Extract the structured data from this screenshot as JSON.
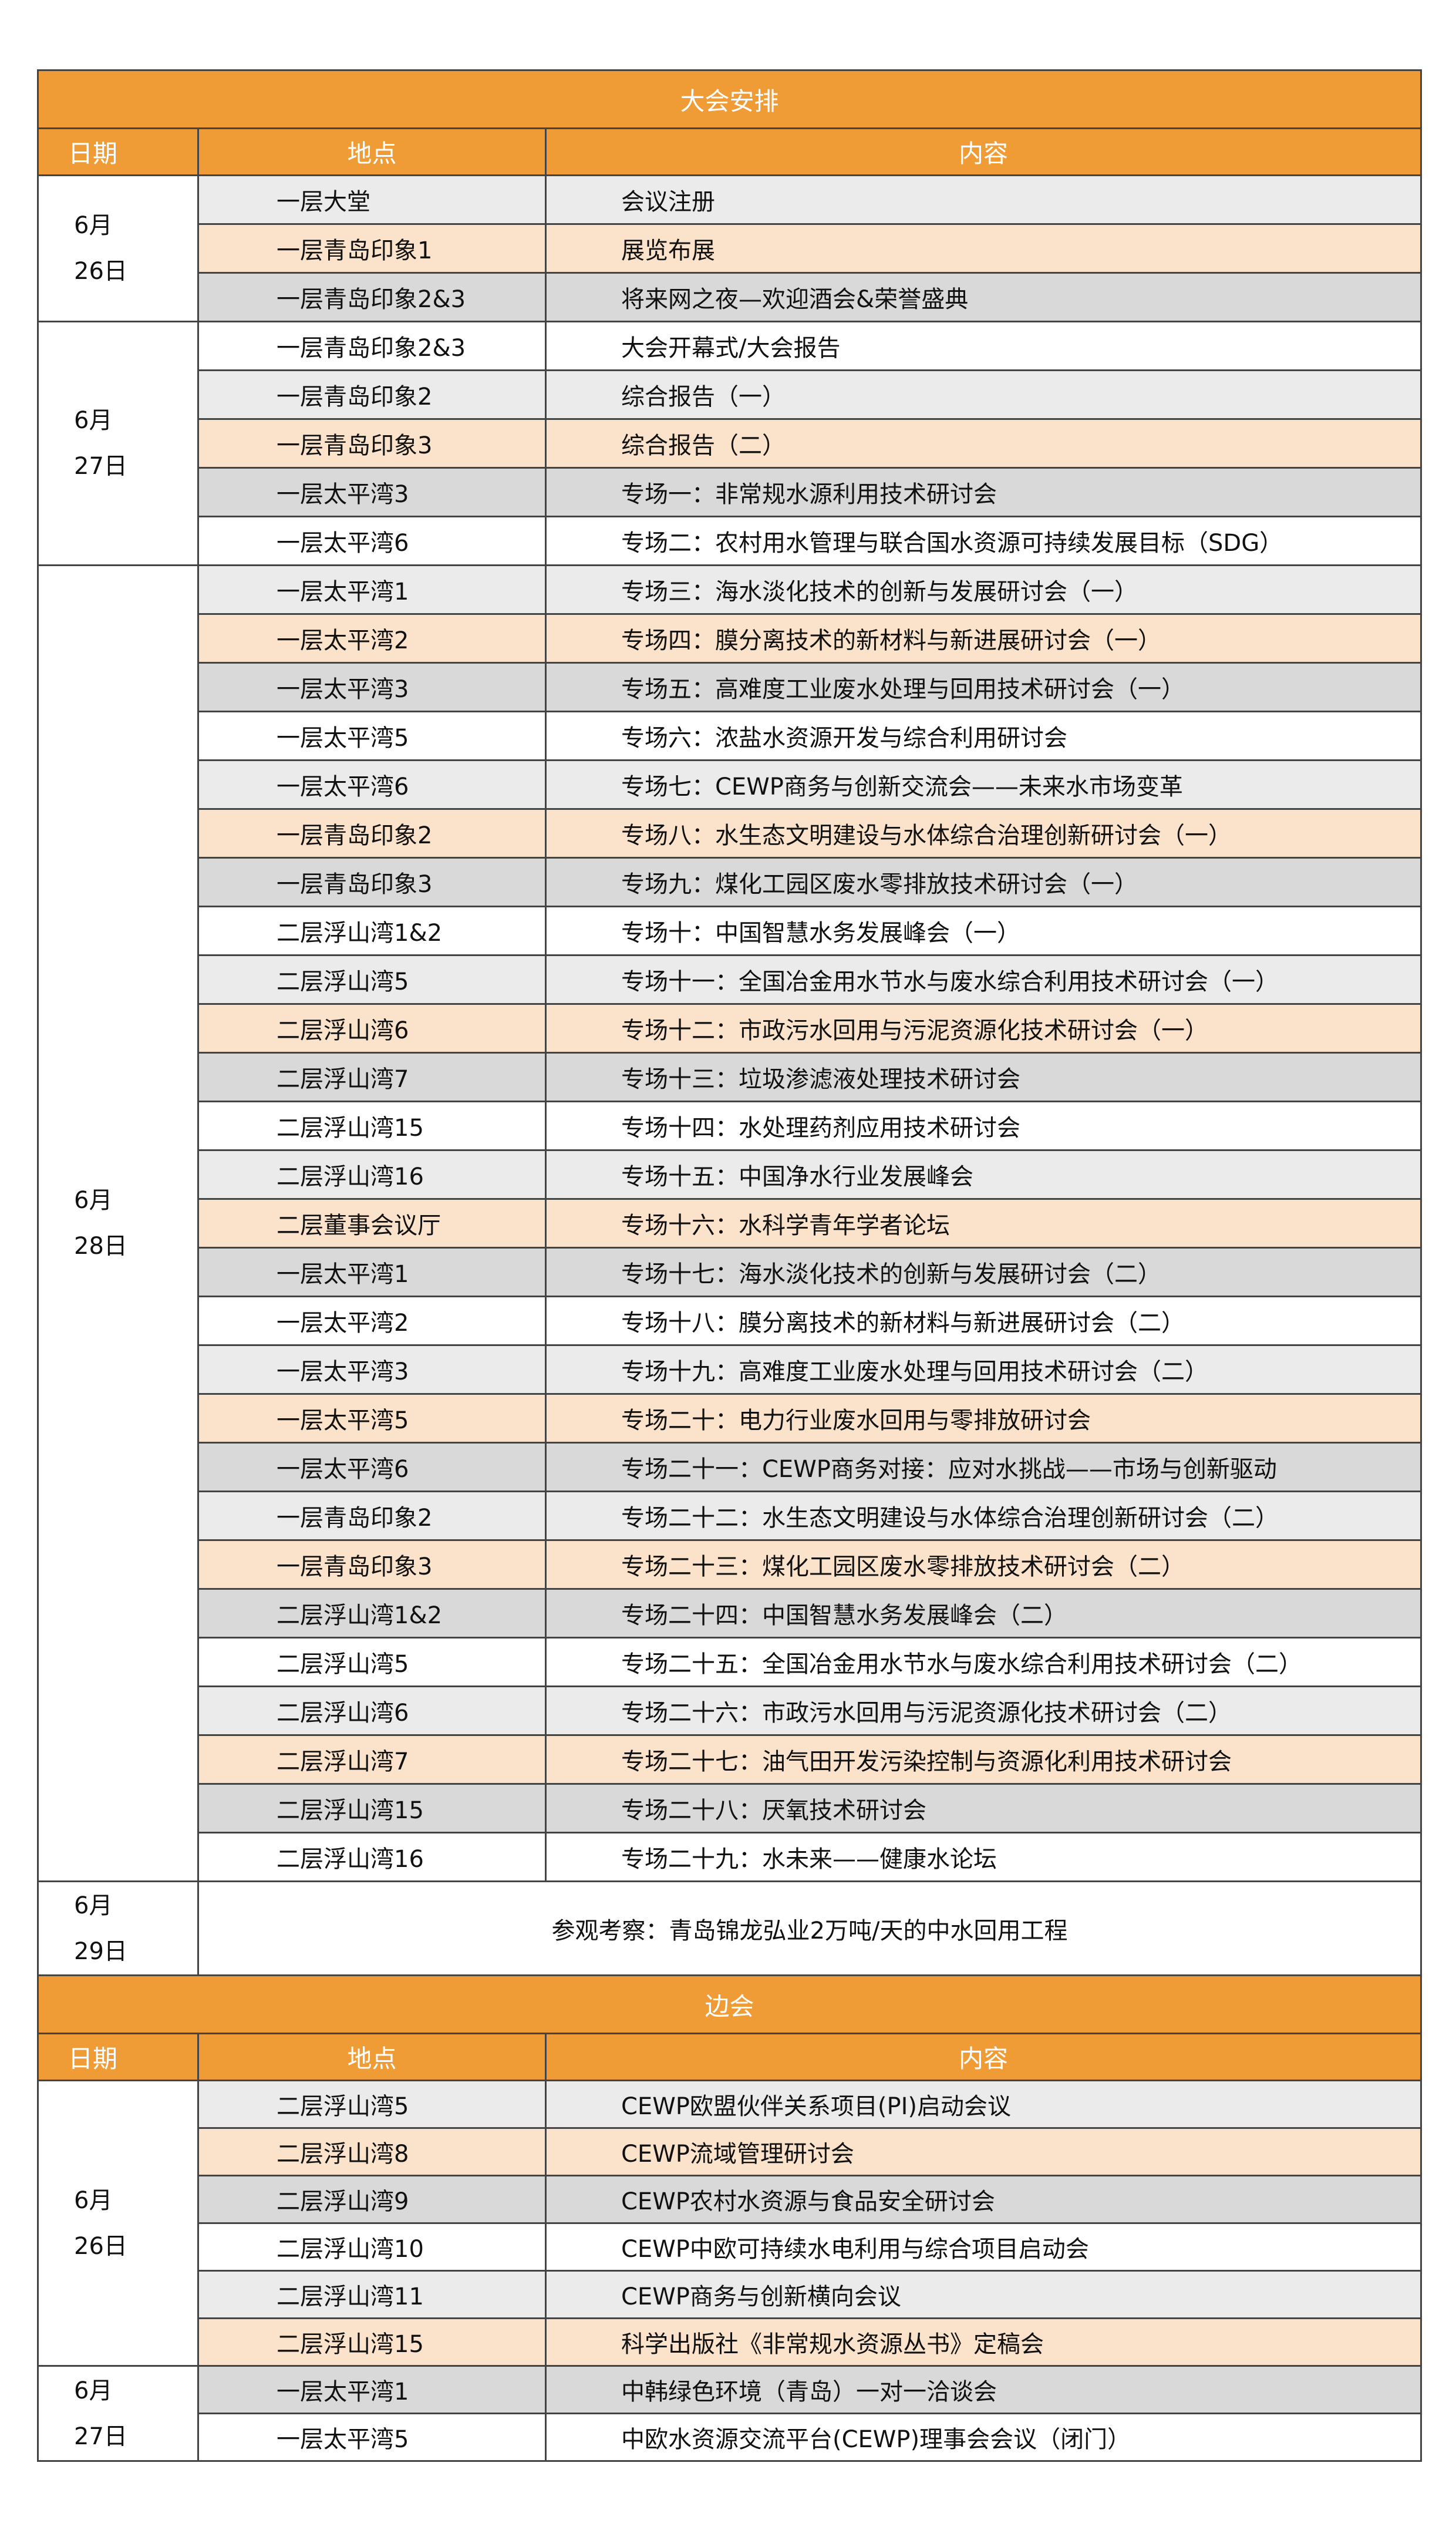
{
  "main": {
    "title": "大会安排",
    "headers": {
      "date": "日期",
      "location": "地点",
      "content": "内容"
    },
    "groups": [
      {
        "month": "6月",
        "day": "26日",
        "rows": [
          {
            "location": "一层大堂",
            "content": "会议注册",
            "shade": "light"
          },
          {
            "location": "一层青岛印象1",
            "content": "展览布展",
            "shade": "peach"
          },
          {
            "location": "一层青岛印象2&3",
            "content": "将来网之夜—欢迎酒会&荣誉盛典",
            "shade": "dark"
          }
        ]
      },
      {
        "month": "6月",
        "day": "27日",
        "rows": [
          {
            "location": "一层青岛印象2&3",
            "content": "大会开幕式/大会报告",
            "shade": "white"
          },
          {
            "location": "一层青岛印象2",
            "content": "综合报告（一）",
            "shade": "light"
          },
          {
            "location": "一层青岛印象3",
            "content": "综合报告（二）",
            "shade": "peach"
          },
          {
            "location": "一层太平湾3",
            "content": "专场一：非常规水源利用技术研讨会",
            "shade": "dark"
          },
          {
            "location": "一层太平湾6",
            "content": "专场二：农村用水管理与联合国水资源可持续发展目标（SDG）",
            "shade": "white"
          }
        ]
      },
      {
        "month": "6月",
        "day": "28日",
        "rows": [
          {
            "location": "一层太平湾1",
            "content": "专场三：海水淡化技术的创新与发展研讨会（一）",
            "shade": "light"
          },
          {
            "location": "一层太平湾2",
            "content": "专场四：膜分离技术的新材料与新进展研讨会（一）",
            "shade": "peach"
          },
          {
            "location": "一层太平湾3",
            "content": "专场五：高难度工业废水处理与回用技术研讨会（一）",
            "shade": "dark"
          },
          {
            "location": "一层太平湾5",
            "content": "专场六：浓盐水资源开发与综合利用研讨会",
            "shade": "white"
          },
          {
            "location": "一层太平湾6",
            "content": "专场七：CEWP商务与创新交流会——未来水市场变革",
            "shade": "light"
          },
          {
            "location": "一层青岛印象2",
            "content": "专场八：水生态文明建设与水体综合治理创新研讨会（一）",
            "shade": "peach"
          },
          {
            "location": "一层青岛印象3",
            "content": "专场九：煤化工园区废水零排放技术研讨会（一）",
            "shade": "dark"
          },
          {
            "location": "二层浮山湾1&2",
            "content": "专场十：中国智慧水务发展峰会（一）",
            "shade": "white"
          },
          {
            "location": "二层浮山湾5",
            "content": "专场十一：全国冶金用水节水与废水综合利用技术研讨会（一）",
            "shade": "light"
          },
          {
            "location": "二层浮山湾6",
            "content": "专场十二：市政污水回用与污泥资源化技术研讨会（一）",
            "shade": "peach"
          },
          {
            "location": "二层浮山湾7",
            "content": "专场十三：垃圾渗滤液处理技术研讨会",
            "shade": "dark"
          },
          {
            "location": "二层浮山湾15",
            "content": "专场十四：水处理药剂应用技术研讨会",
            "shade": "white"
          },
          {
            "location": "二层浮山湾16",
            "content": "专场十五：中国净水行业发展峰会",
            "shade": "light"
          },
          {
            "location": "二层董事会议厅",
            "content": "专场十六：水科学青年学者论坛",
            "shade": "peach"
          },
          {
            "location": "一层太平湾1",
            "content": "专场十七：海水淡化技术的创新与发展研讨会（二）",
            "shade": "dark"
          },
          {
            "location": "一层太平湾2",
            "content": "专场十八：膜分离技术的新材料与新进展研讨会（二）",
            "shade": "white"
          },
          {
            "location": "一层太平湾3",
            "content": "专场十九：高难度工业废水处理与回用技术研讨会（二）",
            "shade": "light"
          },
          {
            "location": "一层太平湾5",
            "content": "专场二十：电力行业废水回用与零排放研讨会",
            "shade": "peach"
          },
          {
            "location": "一层太平湾6",
            "content": "专场二十一：CEWP商务对接：应对水挑战——市场与创新驱动",
            "shade": "dark"
          },
          {
            "location": "一层青岛印象2",
            "content": "专场二十二：水生态文明建设与水体综合治理创新研讨会（二）",
            "shade": "light"
          },
          {
            "location": "一层青岛印象3",
            "content": "专场二十三：煤化工园区废水零排放技术研讨会（二）",
            "shade": "peach"
          },
          {
            "location": "二层浮山湾1&2",
            "content": "专场二十四：中国智慧水务发展峰会（二）",
            "shade": "dark"
          },
          {
            "location": "二层浮山湾5",
            "content": "专场二十五：全国冶金用水节水与废水综合利用技术研讨会（二）",
            "shade": "white"
          },
          {
            "location": "二层浮山湾6",
            "content": "专场二十六：市政污水回用与污泥资源化技术研讨会（二）",
            "shade": "light"
          },
          {
            "location": "二层浮山湾7",
            "content": "专场二十七：油气田开发污染控制与资源化利用技术研讨会",
            "shade": "peach"
          },
          {
            "location": "二层浮山湾15",
            "content": "专场二十八：厌氧技术研讨会",
            "shade": "dark"
          },
          {
            "location": "二层浮山湾16",
            "content": "专场二十九：水未来——健康水论坛",
            "shade": "white"
          }
        ]
      }
    ],
    "visit": {
      "month": "6月",
      "day": "29日",
      "content": "参观考察：青岛锦龙弘业2万吨/天的中水回用工程"
    }
  },
  "side": {
    "title": "边会",
    "headers": {
      "date": "日期",
      "location": "地点",
      "content": "内容"
    },
    "groups": [
      {
        "month": "6月",
        "day": "26日",
        "rows": [
          {
            "location": "二层浮山湾5",
            "content": "CEWP欧盟伙伴关系项目(PI)启动会议",
            "shade": "light"
          },
          {
            "location": "二层浮山湾8",
            "content": "CEWP流域管理研讨会",
            "shade": "peach"
          },
          {
            "location": "二层浮山湾9",
            "content": "CEWP农村水资源与食品安全研讨会",
            "shade": "dark"
          },
          {
            "location": "二层浮山湾10",
            "content": "CEWP中欧可持续水电利用与综合项目启动会",
            "shade": "white"
          },
          {
            "location": "二层浮山湾11",
            "content": "CEWP商务与创新横向会议",
            "shade": "light"
          },
          {
            "location": "二层浮山湾15",
            "content": "科学出版社《非常规水资源丛书》定稿会",
            "shade": "peach"
          }
        ]
      },
      {
        "month": "6月",
        "day": "27日",
        "rows": [
          {
            "location": "一层太平湾1",
            "content": "中韩绿色环境（青岛）一对一洽谈会",
            "shade": "dark"
          },
          {
            "location": "一层太平湾5",
            "content": "中欧水资源交流平台(CEWP)理事会会议（闭门）",
            "shade": "white"
          }
        ]
      }
    ]
  }
}
